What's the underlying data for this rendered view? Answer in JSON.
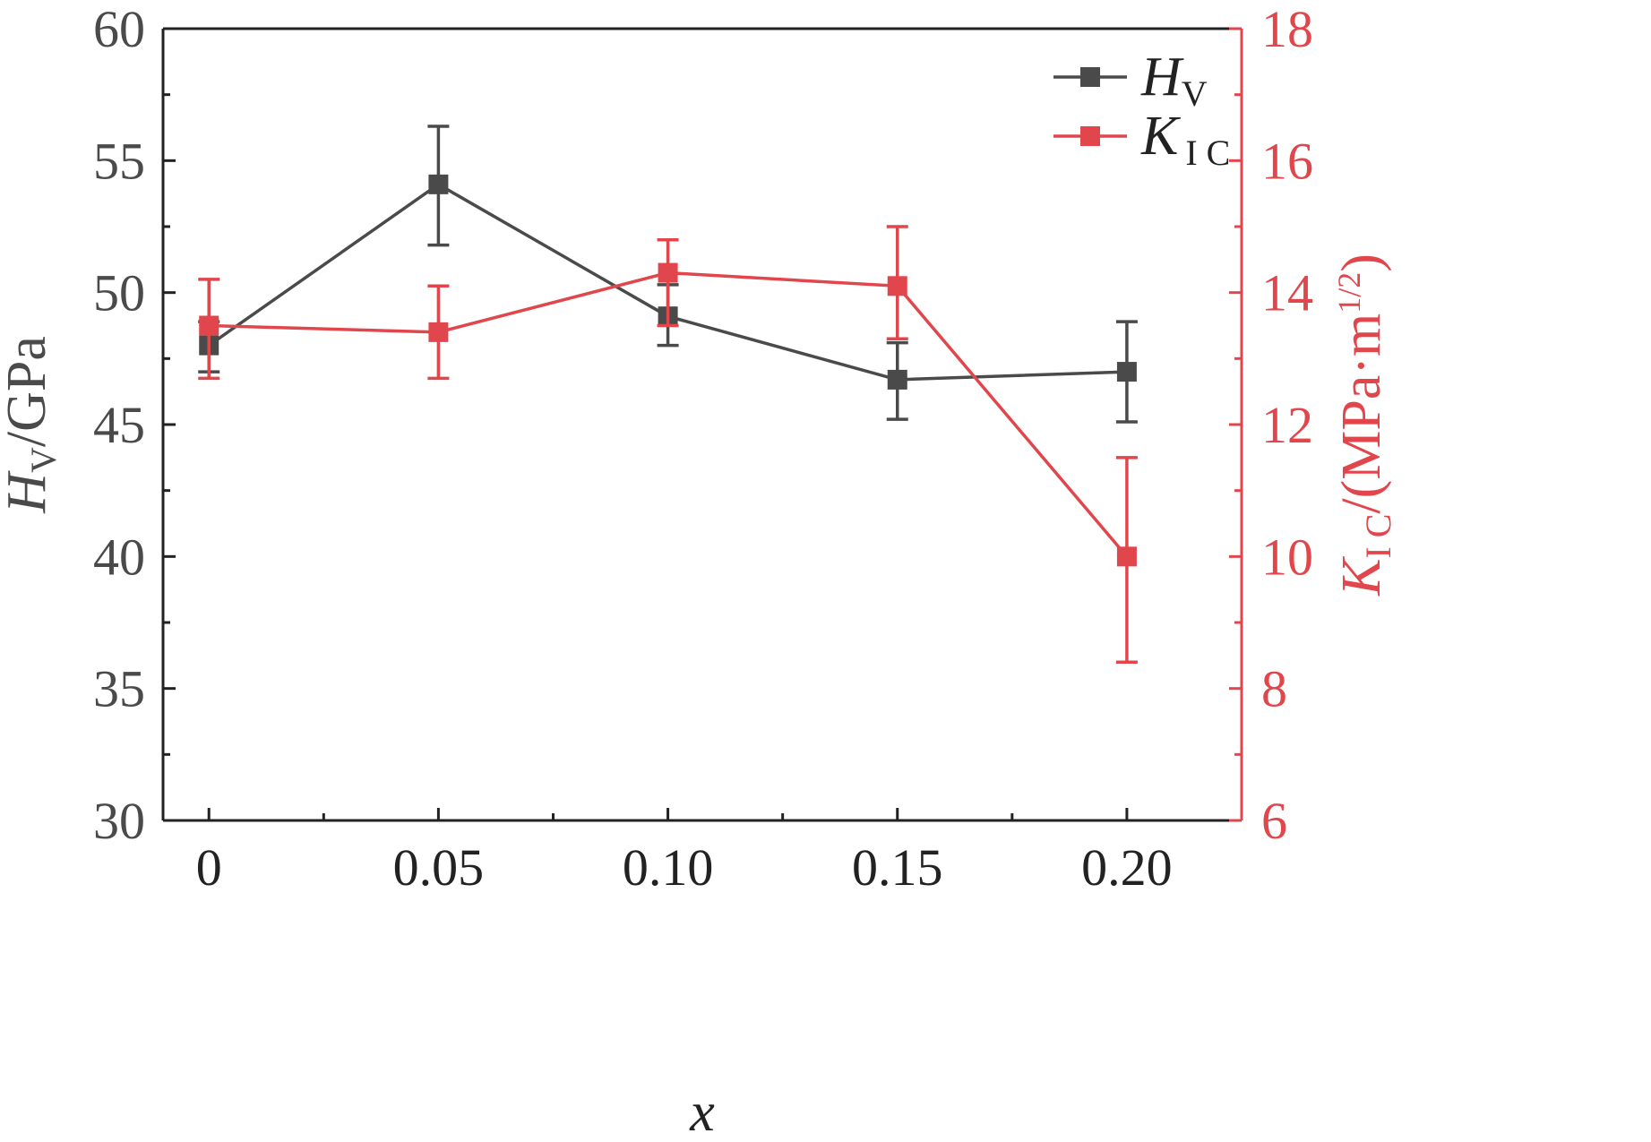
{
  "colors": {
    "left": "#4a4a4a",
    "right": "#e0464b",
    "frame": "#222222"
  },
  "chart_data": {
    "type": "line",
    "title": "",
    "x": [
      0,
      0.05,
      0.1,
      0.15,
      0.2
    ],
    "x_tick_labels": [
      "0",
      "0.05",
      "0.10",
      "0.15",
      "0.20"
    ],
    "xlim": [
      -0.01,
      0.225
    ],
    "xlabel": "x",
    "y_left": {
      "ylim": [
        30,
        60
      ],
      "ticks": [
        30,
        35,
        40,
        45,
        50,
        55,
        60
      ],
      "tick_labels": [
        "30",
        "35",
        "40",
        "45",
        "50",
        "55",
        "60"
      ],
      "label_main": "H",
      "label_sub": "V",
      "label_rest": "/GPa"
    },
    "y_right": {
      "ylim": [
        6,
        18
      ],
      "ticks": [
        6,
        8,
        10,
        12,
        14,
        16,
        18
      ],
      "tick_labels": [
        "6",
        "8",
        "10",
        "12",
        "14",
        "16",
        "18"
      ],
      "label_main": "K",
      "label_sub": "I C",
      "label_rest": "/(MPa·m",
      "label_sup": "1/2",
      "label_close": ")"
    },
    "series": [
      {
        "name": "HV",
        "legend_main": "H",
        "legend_sub": "V",
        "axis": "left",
        "values": [
          48.0,
          54.1,
          49.1,
          46.7,
          47.0
        ],
        "err_low": [
          47.0,
          51.8,
          48.0,
          45.2,
          45.1
        ],
        "err_high": [
          48.9,
          56.3,
          50.3,
          48.1,
          48.9
        ]
      },
      {
        "name": "KIC",
        "legend_main": "K",
        "legend_sub": "I C",
        "axis": "right",
        "values": [
          13.5,
          13.4,
          14.3,
          14.1,
          10.0
        ],
        "err_low": [
          12.7,
          12.7,
          13.5,
          13.3,
          8.4
        ],
        "err_high": [
          14.2,
          14.1,
          14.8,
          15.0,
          11.5
        ]
      }
    ],
    "legend_position": "top-right"
  }
}
